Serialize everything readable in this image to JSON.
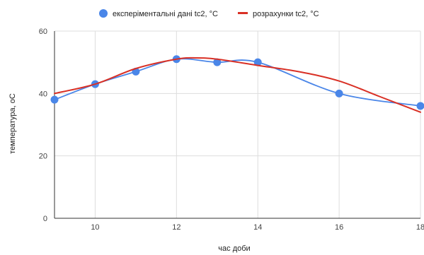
{
  "chart_data": {
    "type": "line",
    "xlabel": "час доби",
    "ylabel": "температура, оС",
    "xlim": [
      9,
      18
    ],
    "ylim": [
      0,
      60
    ],
    "x_ticks": [
      10,
      12,
      14,
      16,
      18
    ],
    "y_ticks": [
      0,
      20,
      40,
      60
    ],
    "grid": true,
    "legend_position": "top",
    "series": [
      {
        "name": "експеріментальні дані tc2, °C",
        "color": "#4a86e8",
        "style": "line-with-points",
        "x": [
          9,
          10,
          11,
          12,
          13,
          14,
          16,
          18
        ],
        "y": [
          38,
          43,
          47,
          51,
          50,
          50,
          40,
          36
        ]
      },
      {
        "name": "розрахунки tc2, °C",
        "color": "#d93025",
        "style": "smooth-line",
        "x": [
          9,
          10,
          11,
          12,
          12.5,
          13,
          14,
          15,
          16,
          17,
          18
        ],
        "y": [
          40,
          43,
          48,
          51,
          51.4,
          51,
          49,
          47,
          44,
          39,
          34
        ]
      }
    ]
  }
}
